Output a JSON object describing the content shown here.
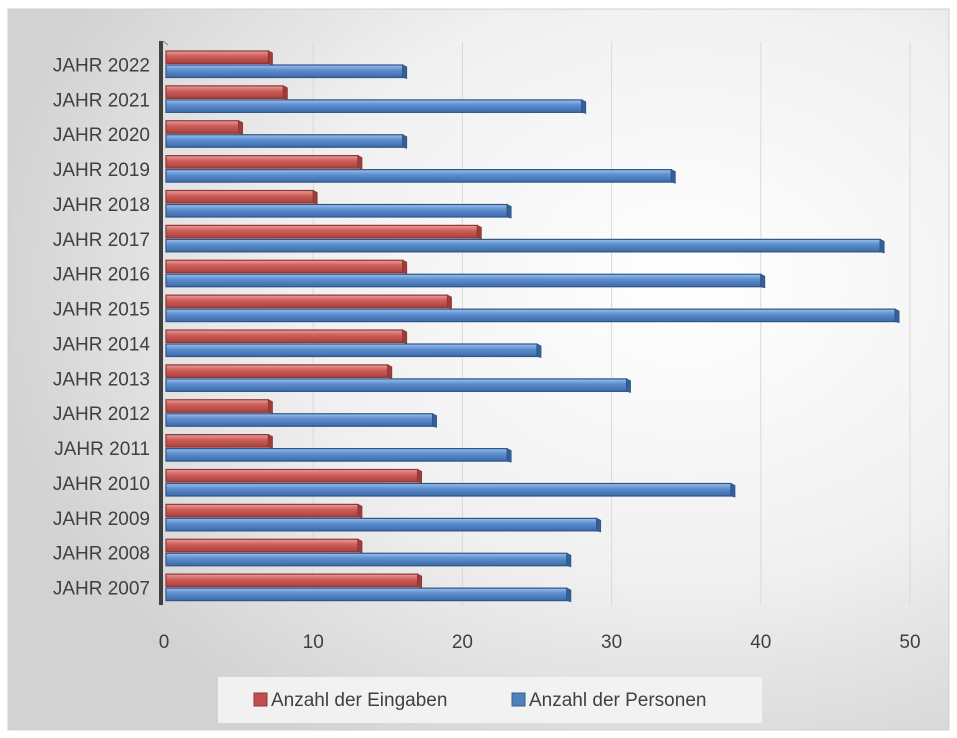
{
  "chart_data": {
    "type": "bar",
    "orientation": "horizontal",
    "categories": [
      "JAHR 2007",
      "JAHR 2008",
      "JAHR 2009",
      "JAHR 2010",
      "JAHR 2011",
      "JAHR 2012",
      "JAHR 2013",
      "JAHR 2014",
      "JAHR 2015",
      "JAHR 2016",
      "JAHR 2017",
      "JAHR 2018",
      "JAHR 2019",
      "JAHR 2020",
      "JAHR 2021",
      "JAHR 2022"
    ],
    "series": [
      {
        "name": "Anzahl der Eingaben",
        "color": "#c0504d",
        "values": [
          17,
          13,
          13,
          17,
          7,
          7,
          15,
          16,
          19,
          16,
          21,
          10,
          13,
          5,
          8,
          7
        ]
      },
      {
        "name": "Anzahl der Personen",
        "color": "#4f81bd",
        "values": [
          27,
          27,
          29,
          38,
          23,
          18,
          31,
          25,
          49,
          40,
          48,
          23,
          34,
          16,
          28,
          16
        ]
      }
    ],
    "xlim": [
      0,
      50
    ],
    "xticks": [
      0,
      10,
      20,
      30,
      40,
      50
    ],
    "title": "",
    "xlabel": "",
    "ylabel": "",
    "grid": "vertical",
    "legend_position": "bottom"
  }
}
